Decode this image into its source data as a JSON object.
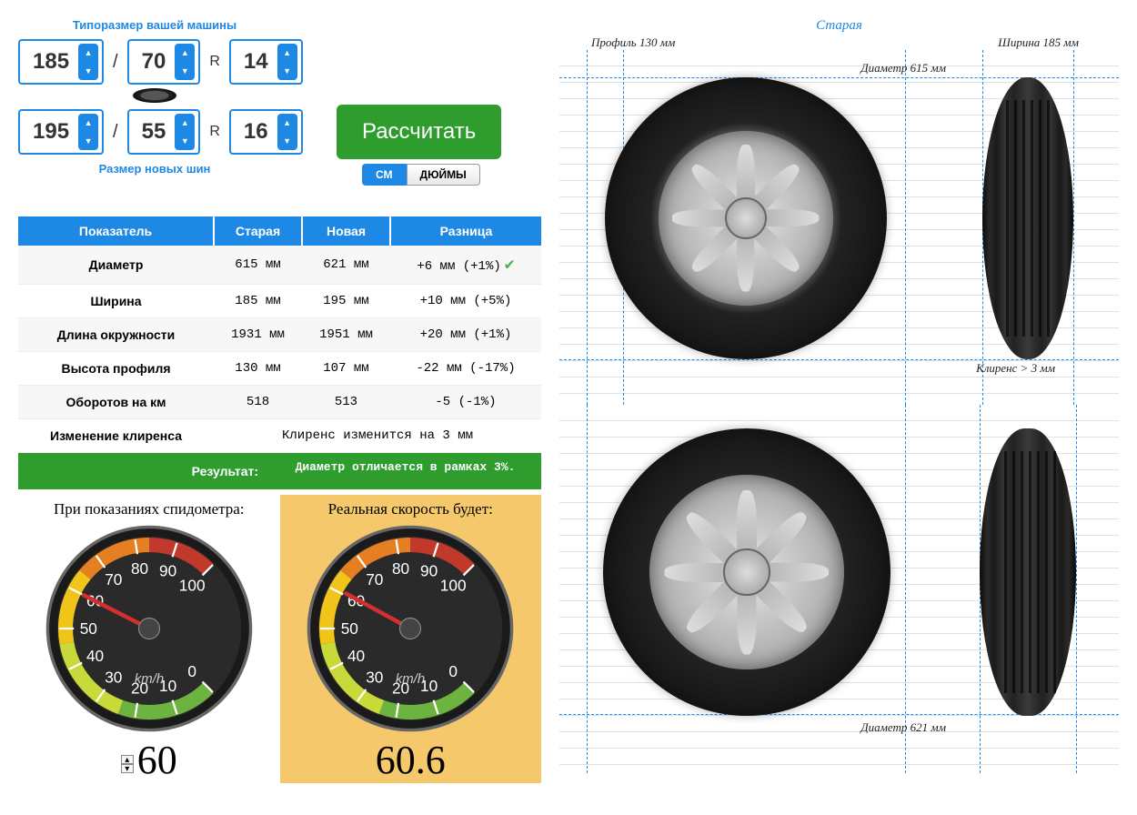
{
  "selectors": {
    "top_label": "Типоразмер вашей машины",
    "bottom_label": "Размер новых шин",
    "old": {
      "width": "185",
      "profile": "70",
      "rim": "14"
    },
    "new": {
      "width": "195",
      "profile": "55",
      "rim": "16"
    },
    "r_letter": "R",
    "slash": "/"
  },
  "calc_button": "Рассчитать",
  "units": {
    "cm": "СМ",
    "inches": "ДЮЙМЫ",
    "active": "cm"
  },
  "table": {
    "headers": [
      "Показатель",
      "Старая",
      "Новая",
      "Разница"
    ],
    "rows": [
      {
        "name": "Диаметр",
        "old": "615 мм",
        "new": "621  мм",
        "diff": "+6 мм (+1%)",
        "check": true
      },
      {
        "name": "Ширина",
        "old": "185 мм",
        "new": "195  мм",
        "diff": "+10 мм (+5%)",
        "check": false
      },
      {
        "name": "Длина окружности",
        "old": "1931 мм",
        "new": "1951 мм",
        "diff": "+20 мм (+1%)",
        "check": false
      },
      {
        "name": "Высота профиля",
        "old": "130 мм",
        "new": "107  мм",
        "diff": "-22 мм (-17%)",
        "check": false
      },
      {
        "name": "Оборотов на км",
        "old": "518",
        "new": "513",
        "diff": "-5 (-1%)",
        "check": false
      }
    ],
    "clearance_row": {
      "name": "Изменение клиренса",
      "value": "Клиренс изменится на 3 мм"
    },
    "result": {
      "label": "Результат:",
      "value": "Диаметр отличается в рамках 3%."
    }
  },
  "speedo": {
    "left_label": "При показаниях спидометра:",
    "right_label": "Реальная скорость будет:",
    "left_value": "60",
    "right_value": "60.6",
    "unit": "km/h",
    "max": 100,
    "ticks": [
      0,
      10,
      20,
      30,
      40,
      50,
      60,
      70,
      80,
      90,
      100
    ]
  },
  "visuals": {
    "title_old": "Старая",
    "profile_label": "Профиль 130 мм",
    "width_label": "Ширина 185 мм",
    "diameter_old_label": "Диаметр 615 мм",
    "clearance_label": "Клиренс > 3 мм",
    "diameter_new_label": "Диаметр 621 мм"
  },
  "colors": {
    "primary_blue": "#1e88e5",
    "calc_green": "#2e9d2e",
    "highlight_yellow": "#f5c96b",
    "check_green": "#4caf50"
  }
}
